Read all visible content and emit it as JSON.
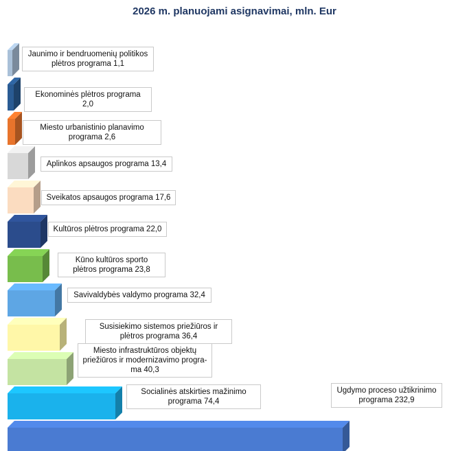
{
  "chart_data": {
    "type": "bar",
    "title": "2026 m. planuojami asignavimai, mln. Eur",
    "categories": [
      "Ugdymo proceso užtikrinimo programa",
      "Socialinės atskirties mažinimo programa",
      "Miesto infrastruktūros objektų priežiūros ir modernizavimo programa",
      "Susisiekimo sistemos priežiūros ir plėtros programa",
      "Savivaldybės valdymo programa",
      "Kūno kultūros sporto plėtros programa",
      "Kultūros plėtros programa",
      "Sveikatos apsaugos programa",
      "Aplinkos apsaugos programa",
      "Miesto urbanistinio planavimo programa",
      "Ekonominės plėtros programa",
      "Jaunimo ir bendruomenių politikos plėtros programa"
    ],
    "values": [
      232.9,
      74.4,
      40.3,
      36.4,
      32.4,
      23.8,
      22.0,
      17.6,
      13.4,
      2.6,
      2.0,
      1.1
    ],
    "labels": [
      "Ugdymo proceso užtikrinimo programa 232,9",
      "Socialinės atskirties mažinimo programa 74,4",
      "Miesto infrastruktūros objektų priežiūros ir moderniza­vimo pro­gra­ma 40,3",
      "Susisiekimo sistemos priežiūros ir plėtros programa 36,4",
      "Savivaldybės valdymo programa 32,4",
      "Kūno kultūros sporto plėtros programa 23,8",
      "Kultūros plėtros programa 22,0",
      "Sveikatos apsaugos  programa 17,6",
      "Aplinkos apsaugos programa 13,4",
      "Miesto urbanistinio planavimo programa 2,6",
      "Ekonominės plėtros programa 2,0",
      "Jaunimo ir bendruomenių politikos plėtros programa 1,1"
    ],
    "colors": [
      "#4a7bd2",
      "#1ab2ec",
      "#c4e3a2",
      "#fff7a8",
      "#5ea6e4",
      "#78bd4c",
      "#2b4c8c",
      "#fbdcc0",
      "#d8d8d8",
      "#e8742c",
      "#2a5b93",
      "#a9c0d8"
    ],
    "xlabel": "",
    "ylabel": ""
  }
}
